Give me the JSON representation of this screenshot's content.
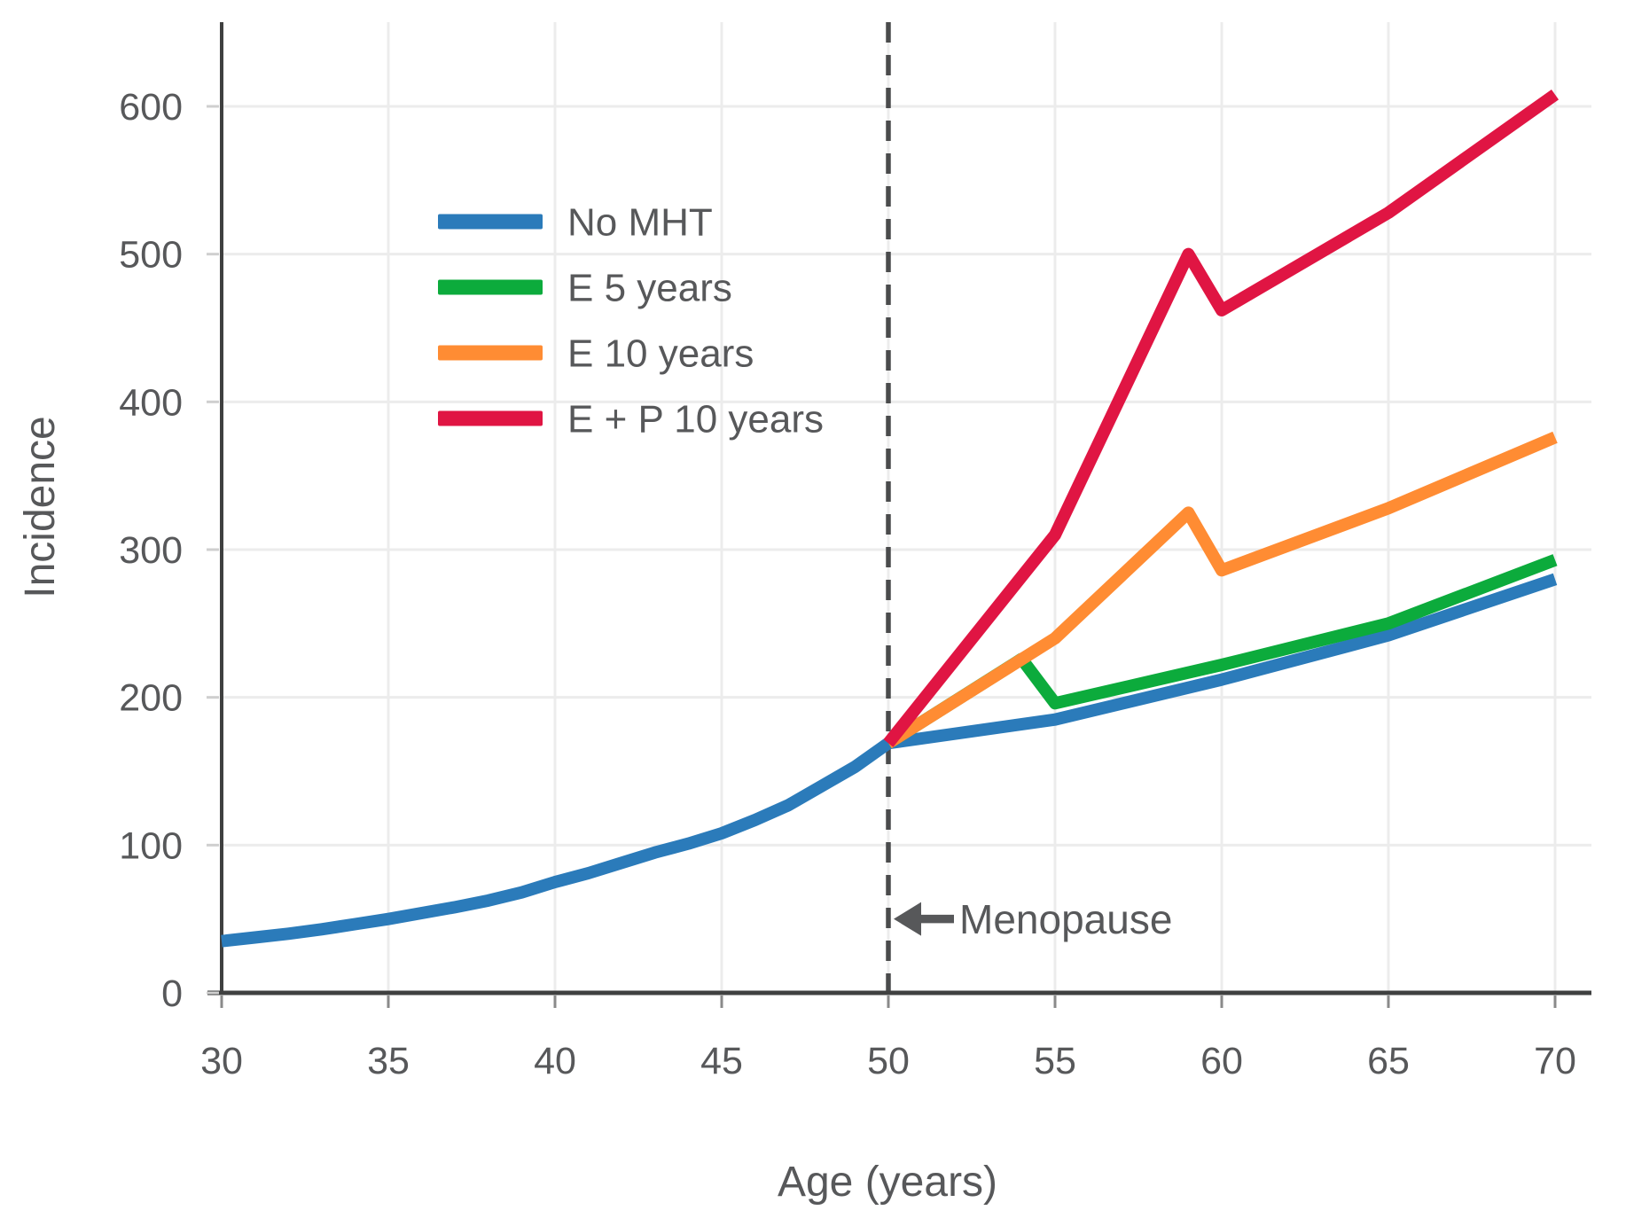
{
  "chart_data": {
    "type": "line",
    "title": "",
    "xlabel": "Age (years)",
    "ylabel": "Incidence",
    "xlim": [
      30,
      71
    ],
    "ylim": [
      0,
      655
    ],
    "xticks": [
      30,
      35,
      40,
      45,
      50,
      55,
      60,
      65,
      70
    ],
    "yticks": [
      0,
      100,
      200,
      300,
      400,
      500,
      600
    ],
    "grid": true,
    "legend_position": "upper-left-inside",
    "series": [
      {
        "name": "No MHT",
        "color": "#2b7bba",
        "points": [
          [
            30,
            35
          ],
          [
            31,
            37.5
          ],
          [
            32,
            40
          ],
          [
            33,
            43
          ],
          [
            34,
            46.5
          ],
          [
            35,
            50
          ],
          [
            36,
            54
          ],
          [
            37,
            58
          ],
          [
            38,
            62.5
          ],
          [
            39,
            68
          ],
          [
            40,
            75
          ],
          [
            41,
            81
          ],
          [
            42,
            88
          ],
          [
            43,
            95
          ],
          [
            44,
            101
          ],
          [
            45,
            108
          ],
          [
            46,
            117
          ],
          [
            47,
            127
          ],
          [
            48,
            140
          ],
          [
            49,
            153
          ],
          [
            50,
            169
          ],
          [
            55,
            185
          ],
          [
            60,
            212
          ],
          [
            65,
            242
          ],
          [
            70,
            280
          ]
        ]
      },
      {
        "name": "E 5 years",
        "color": "#0cab3c",
        "points": [
          [
            50,
            169
          ],
          [
            54,
            226
          ],
          [
            55,
            196
          ],
          [
            60,
            222
          ],
          [
            65,
            250
          ],
          [
            70,
            293
          ]
        ]
      },
      {
        "name": "E 10 years",
        "color": "#ff8c33",
        "points": [
          [
            50,
            169
          ],
          [
            55,
            240
          ],
          [
            59,
            325
          ],
          [
            60,
            286
          ],
          [
            65,
            328
          ],
          [
            70,
            376
          ]
        ]
      },
      {
        "name": "E + P 10 years",
        "color": "#e01543",
        "points": [
          [
            50,
            169
          ],
          [
            55,
            310
          ],
          [
            59,
            500
          ],
          [
            60,
            462
          ],
          [
            65,
            528
          ],
          [
            70,
            608
          ]
        ]
      }
    ],
    "annotations": {
      "menopause_line": {
        "x": 50,
        "style": "dashed",
        "color": "#4a4b4c"
      },
      "menopause_label": {
        "text": "Menopause",
        "arrow": "left",
        "x": 50,
        "y": 50
      }
    },
    "colors": {
      "grid": "#ececec",
      "spine": "#3f4040",
      "x_tick": "#8a8a8a",
      "y_tick": "#cfcfcf",
      "text": "#57585a"
    }
  }
}
